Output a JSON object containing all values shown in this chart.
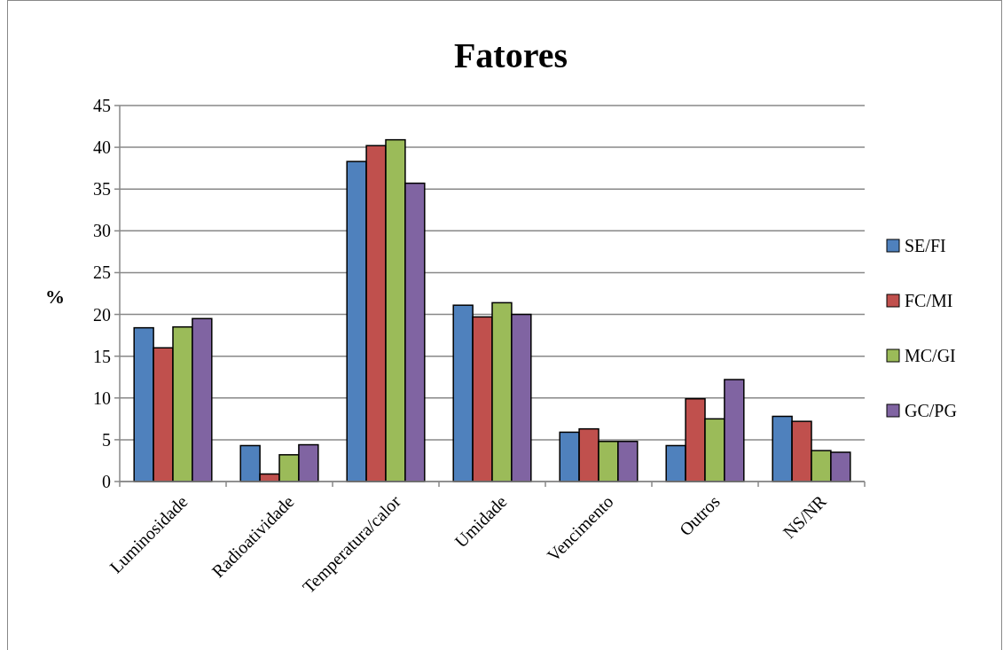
{
  "chart_data": {
    "type": "bar",
    "title": "Fatores",
    "ylabel": "%",
    "categories": [
      "Luminosidade",
      "Radioatividade",
      "Temperatura/calor",
      "Umidade",
      "Vencimento",
      "Outros",
      "NS/NR"
    ],
    "series": [
      {
        "name": "SE/FI",
        "color": "#4f81bd",
        "values": [
          18.4,
          4.3,
          38.3,
          21.1,
          5.9,
          4.3,
          7.8
        ]
      },
      {
        "name": "FC/MI",
        "color": "#c0504d",
        "values": [
          16.0,
          0.9,
          40.2,
          19.7,
          6.3,
          9.9,
          7.2
        ]
      },
      {
        "name": "MC/GI",
        "color": "#9bbb59",
        "values": [
          18.5,
          3.2,
          40.9,
          21.4,
          4.8,
          7.5,
          3.7
        ]
      },
      {
        "name": "GC/PG",
        "color": "#8064a2",
        "values": [
          19.5,
          4.4,
          35.7,
          20.0,
          4.8,
          12.2,
          3.5
        ]
      }
    ],
    "ylim": [
      0,
      45
    ],
    "yticks": [
      0,
      5,
      10,
      15,
      20,
      25,
      30,
      35,
      40,
      45
    ],
    "grid": "y",
    "legend": "right"
  }
}
